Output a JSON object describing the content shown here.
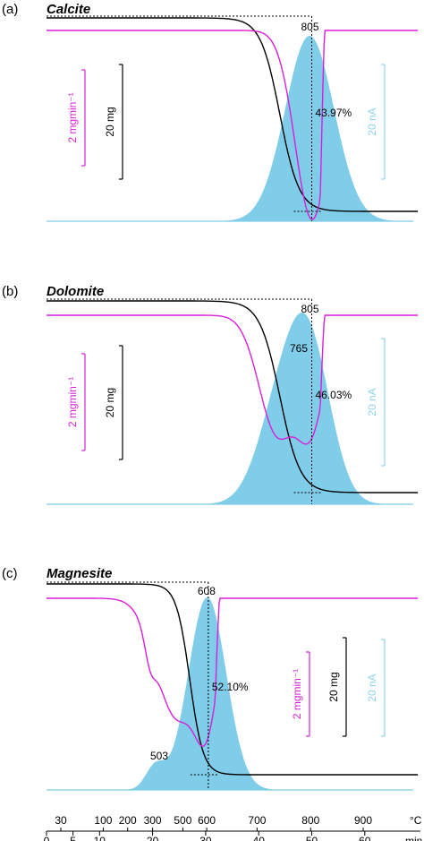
{
  "chart_data": {
    "type": "line",
    "x_axis": {
      "time_unit": "min",
      "time_ticks": [
        0,
        5,
        10,
        20,
        30,
        40,
        50,
        60
      ],
      "time_range": [
        0,
        70
      ],
      "temp_unit": "°C",
      "temp_ticks": [
        {
          "label": "30",
          "min": 2.7
        },
        {
          "label": "100",
          "min": 10.7
        },
        {
          "label": "200",
          "min": 15.3
        },
        {
          "label": "300",
          "min": 20.0
        },
        {
          "label": "500",
          "min": 25.7
        },
        {
          "label": "600",
          "min": 30.2
        },
        {
          "label": "700",
          "min": 39.7
        },
        {
          "label": "800",
          "min": 49.8
        },
        {
          "label": "900",
          "min": 59.7
        }
      ]
    },
    "panels": [
      {
        "label": "(a)",
        "title": "Calcite",
        "peak_label": "805",
        "peak_min": 50.0,
        "mass_loss_label": "43.97%",
        "shoulder_label": "",
        "scale_bars": {
          "dtg": "2 mgmin⁻¹",
          "tg": "20 mg",
          "ms": "20 nA"
        },
        "tg_start": 0,
        "tg_end": 0.4397,
        "tg_mid_min": 44.0,
        "tg_width_min": 4.0,
        "ms_gauss": [
          {
            "x": 49.6,
            "w": 4.6,
            "a": 1.0
          }
        ],
        "dtg_dips": [
          {
            "x": 50.1,
            "w": 3.2,
            "a": 1.0
          }
        ],
        "dtg_step_min": 51.6
      },
      {
        "label": "(b)",
        "title": "Dolomite",
        "peak_label": "805",
        "peak_min": 50.0,
        "mass_loss_label": "46.03%",
        "shoulder_label": "765",
        "scale_bars": {
          "dtg": "2 mgmin⁻¹",
          "tg": "20 mg",
          "ms": "20 nA"
        },
        "tg_start": 0,
        "tg_end": 0.4603,
        "tg_mid_min": 44.0,
        "tg_width_min": 4.2,
        "ms_gauss": [
          {
            "x": 49.7,
            "w": 4.0,
            "a": 0.88
          },
          {
            "x": 44.0,
            "w": 4.2,
            "a": 0.55
          }
        ],
        "dtg_dips": [
          {
            "x": 43.5,
            "w": 3.4,
            "a": 0.62
          },
          {
            "x": 50.0,
            "w": 2.6,
            "a": 0.55
          }
        ],
        "dtg_step_min": 51.6
      },
      {
        "label": "(c)",
        "title": "Magnesite",
        "peak_label": "608",
        "peak_min": 30.5,
        "mass_loss_label": "52.10%",
        "shoulder_label": "503",
        "scale_bars": {
          "dtg": "2 mgmin⁻¹",
          "tg": "20 mg",
          "ms": "20 nA"
        },
        "tg_start": 0,
        "tg_end": 0.521,
        "tg_mid_min": 27.0,
        "tg_width_min": 2.8,
        "ms_gauss": [
          {
            "x": 30.3,
            "w": 3.6,
            "a": 1.0
          },
          {
            "x": 20.5,
            "w": 1.8,
            "a": 0.12
          }
        ],
        "dtg_dips": [
          {
            "x": 24.5,
            "w": 3.8,
            "a": 0.62
          },
          {
            "x": 30.3,
            "w": 2.2,
            "a": 0.55
          },
          {
            "x": 19.5,
            "w": 1.0,
            "a": 0.12
          }
        ],
        "dtg_step_min": 31.8
      }
    ],
    "colors": {
      "tg": "#000000",
      "dtg": "#d81fd8",
      "ms_fill": "#7fcde8",
      "ms_bar": "#8fd3ea",
      "ref_lines": "#000000"
    }
  }
}
